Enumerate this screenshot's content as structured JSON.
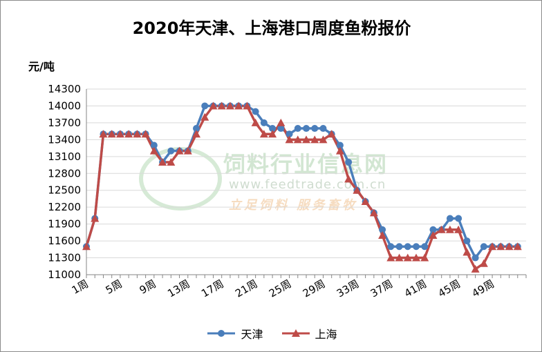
{
  "title": "2020年天津、上海港口周度鱼粉报价",
  "y_unit": "元/吨",
  "watermark": {
    "name": "饲料行业信息网",
    "url": "www.feedtrade.com.cn",
    "slogan": "立足饲料   服务畜牧"
  },
  "legend": [
    {
      "name": "天津",
      "color": "#4a7ebb",
      "marker": "circle"
    },
    {
      "name": "上海",
      "color": "#be4b48",
      "marker": "triangle"
    }
  ],
  "chart_data": {
    "type": "line",
    "title": "2020年天津、上海港口周度鱼粉报价",
    "xlabel": "",
    "ylabel": "元/吨",
    "ylim": [
      11000,
      14300
    ],
    "yticks": [
      11000,
      11300,
      11600,
      11900,
      12200,
      12500,
      12800,
      13100,
      13400,
      13700,
      14000,
      14300
    ],
    "x_tick_labels": [
      "1周",
      "5周",
      "9周",
      "13周",
      "17周",
      "21周",
      "25周",
      "29周",
      "33周",
      "37周",
      "41周",
      "45周",
      "49周"
    ],
    "x_tick_weeks": [
      1,
      5,
      9,
      13,
      17,
      21,
      25,
      29,
      33,
      37,
      41,
      45,
      49
    ],
    "x": [
      1,
      2,
      3,
      4,
      5,
      6,
      7,
      8,
      9,
      10,
      11,
      12,
      13,
      14,
      15,
      16,
      17,
      18,
      19,
      20,
      21,
      22,
      23,
      24,
      25,
      26,
      27,
      28,
      29,
      30,
      31,
      32,
      33,
      34,
      35,
      36,
      37,
      38,
      39,
      40,
      41,
      42,
      43,
      44,
      45,
      46,
      47,
      48,
      49,
      50,
      51,
      52
    ],
    "legend_position": "bottom",
    "grid": "horizontal",
    "series": [
      {
        "name": "天津",
        "color": "#4a7ebb",
        "marker": "circle",
        "values": [
          11500,
          12000,
          13500,
          13500,
          13500,
          13500,
          13500,
          13500,
          13300,
          13000,
          13200,
          13200,
          13200,
          13600,
          14000,
          14000,
          14000,
          14000,
          14000,
          14000,
          13900,
          13700,
          13600,
          13600,
          13500,
          13600,
          13600,
          13600,
          13600,
          13500,
          13300,
          13000,
          12500,
          12300,
          12100,
          11800,
          11500,
          11500,
          11500,
          11500,
          11500,
          11800,
          11800,
          12000,
          12000,
          11600,
          11300,
          11500,
          11500,
          11500,
          11500,
          11500
        ]
      },
      {
        "name": "上海",
        "color": "#be4b48",
        "marker": "triangle",
        "values": [
          11500,
          12000,
          13500,
          13500,
          13500,
          13500,
          13500,
          13500,
          13200,
          13000,
          13000,
          13200,
          13200,
          13500,
          13800,
          14000,
          14000,
          14000,
          14000,
          14000,
          13700,
          13500,
          13500,
          13700,
          13400,
          13400,
          13400,
          13400,
          13400,
          13500,
          13200,
          12700,
          12500,
          12300,
          12100,
          11700,
          11300,
          11300,
          11300,
          11300,
          11300,
          11700,
          11800,
          11800,
          11800,
          11400,
          11100,
          11200,
          11500,
          11500,
          11500,
          11500
        ]
      }
    ]
  }
}
